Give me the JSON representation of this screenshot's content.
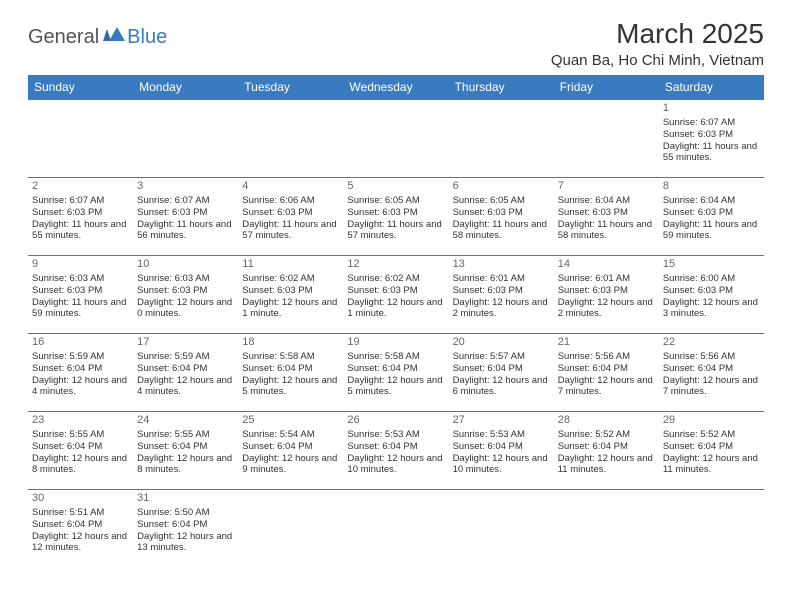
{
  "logo": {
    "text1": "General",
    "text2": "Blue"
  },
  "title": "March 2025",
  "location": "Quan Ba, Ho Chi Minh, Vietnam",
  "colors": {
    "header_bg": "#3a7bbf",
    "header_text": "#ffffff",
    "border": "#3a7bbf",
    "text": "#333333",
    "daynum": "#666666",
    "logo_gray": "#555555",
    "logo_blue": "#3a7bbf"
  },
  "day_headers": [
    "Sunday",
    "Monday",
    "Tuesday",
    "Wednesday",
    "Thursday",
    "Friday",
    "Saturday"
  ],
  "weeks": [
    [
      null,
      null,
      null,
      null,
      null,
      null,
      {
        "n": "1",
        "sr": "Sunrise: 6:07 AM",
        "ss": "Sunset: 6:03 PM",
        "dl": "Daylight: 11 hours and 55 minutes."
      }
    ],
    [
      {
        "n": "2",
        "sr": "Sunrise: 6:07 AM",
        "ss": "Sunset: 6:03 PM",
        "dl": "Daylight: 11 hours and 55 minutes."
      },
      {
        "n": "3",
        "sr": "Sunrise: 6:07 AM",
        "ss": "Sunset: 6:03 PM",
        "dl": "Daylight: 11 hours and 56 minutes."
      },
      {
        "n": "4",
        "sr": "Sunrise: 6:06 AM",
        "ss": "Sunset: 6:03 PM",
        "dl": "Daylight: 11 hours and 57 minutes."
      },
      {
        "n": "5",
        "sr": "Sunrise: 6:05 AM",
        "ss": "Sunset: 6:03 PM",
        "dl": "Daylight: 11 hours and 57 minutes."
      },
      {
        "n": "6",
        "sr": "Sunrise: 6:05 AM",
        "ss": "Sunset: 6:03 PM",
        "dl": "Daylight: 11 hours and 58 minutes."
      },
      {
        "n": "7",
        "sr": "Sunrise: 6:04 AM",
        "ss": "Sunset: 6:03 PM",
        "dl": "Daylight: 11 hours and 58 minutes."
      },
      {
        "n": "8",
        "sr": "Sunrise: 6:04 AM",
        "ss": "Sunset: 6:03 PM",
        "dl": "Daylight: 11 hours and 59 minutes."
      }
    ],
    [
      {
        "n": "9",
        "sr": "Sunrise: 6:03 AM",
        "ss": "Sunset: 6:03 PM",
        "dl": "Daylight: 11 hours and 59 minutes."
      },
      {
        "n": "10",
        "sr": "Sunrise: 6:03 AM",
        "ss": "Sunset: 6:03 PM",
        "dl": "Daylight: 12 hours and 0 minutes."
      },
      {
        "n": "11",
        "sr": "Sunrise: 6:02 AM",
        "ss": "Sunset: 6:03 PM",
        "dl": "Daylight: 12 hours and 1 minute."
      },
      {
        "n": "12",
        "sr": "Sunrise: 6:02 AM",
        "ss": "Sunset: 6:03 PM",
        "dl": "Daylight: 12 hours and 1 minute."
      },
      {
        "n": "13",
        "sr": "Sunrise: 6:01 AM",
        "ss": "Sunset: 6:03 PM",
        "dl": "Daylight: 12 hours and 2 minutes."
      },
      {
        "n": "14",
        "sr": "Sunrise: 6:01 AM",
        "ss": "Sunset: 6:03 PM",
        "dl": "Daylight: 12 hours and 2 minutes."
      },
      {
        "n": "15",
        "sr": "Sunrise: 6:00 AM",
        "ss": "Sunset: 6:03 PM",
        "dl": "Daylight: 12 hours and 3 minutes."
      }
    ],
    [
      {
        "n": "16",
        "sr": "Sunrise: 5:59 AM",
        "ss": "Sunset: 6:04 PM",
        "dl": "Daylight: 12 hours and 4 minutes."
      },
      {
        "n": "17",
        "sr": "Sunrise: 5:59 AM",
        "ss": "Sunset: 6:04 PM",
        "dl": "Daylight: 12 hours and 4 minutes."
      },
      {
        "n": "18",
        "sr": "Sunrise: 5:58 AM",
        "ss": "Sunset: 6:04 PM",
        "dl": "Daylight: 12 hours and 5 minutes."
      },
      {
        "n": "19",
        "sr": "Sunrise: 5:58 AM",
        "ss": "Sunset: 6:04 PM",
        "dl": "Daylight: 12 hours and 5 minutes."
      },
      {
        "n": "20",
        "sr": "Sunrise: 5:57 AM",
        "ss": "Sunset: 6:04 PM",
        "dl": "Daylight: 12 hours and 6 minutes."
      },
      {
        "n": "21",
        "sr": "Sunrise: 5:56 AM",
        "ss": "Sunset: 6:04 PM",
        "dl": "Daylight: 12 hours and 7 minutes."
      },
      {
        "n": "22",
        "sr": "Sunrise: 5:56 AM",
        "ss": "Sunset: 6:04 PM",
        "dl": "Daylight: 12 hours and 7 minutes."
      }
    ],
    [
      {
        "n": "23",
        "sr": "Sunrise: 5:55 AM",
        "ss": "Sunset: 6:04 PM",
        "dl": "Daylight: 12 hours and 8 minutes."
      },
      {
        "n": "24",
        "sr": "Sunrise: 5:55 AM",
        "ss": "Sunset: 6:04 PM",
        "dl": "Daylight: 12 hours and 8 minutes."
      },
      {
        "n": "25",
        "sr": "Sunrise: 5:54 AM",
        "ss": "Sunset: 6:04 PM",
        "dl": "Daylight: 12 hours and 9 minutes."
      },
      {
        "n": "26",
        "sr": "Sunrise: 5:53 AM",
        "ss": "Sunset: 6:04 PM",
        "dl": "Daylight: 12 hours and 10 minutes."
      },
      {
        "n": "27",
        "sr": "Sunrise: 5:53 AM",
        "ss": "Sunset: 6:04 PM",
        "dl": "Daylight: 12 hours and 10 minutes."
      },
      {
        "n": "28",
        "sr": "Sunrise: 5:52 AM",
        "ss": "Sunset: 6:04 PM",
        "dl": "Daylight: 12 hours and 11 minutes."
      },
      {
        "n": "29",
        "sr": "Sunrise: 5:52 AM",
        "ss": "Sunset: 6:04 PM",
        "dl": "Daylight: 12 hours and 11 minutes."
      }
    ],
    [
      {
        "n": "30",
        "sr": "Sunrise: 5:51 AM",
        "ss": "Sunset: 6:04 PM",
        "dl": "Daylight: 12 hours and 12 minutes."
      },
      {
        "n": "31",
        "sr": "Sunrise: 5:50 AM",
        "ss": "Sunset: 6:04 PM",
        "dl": "Daylight: 12 hours and 13 minutes."
      },
      null,
      null,
      null,
      null,
      null
    ]
  ]
}
